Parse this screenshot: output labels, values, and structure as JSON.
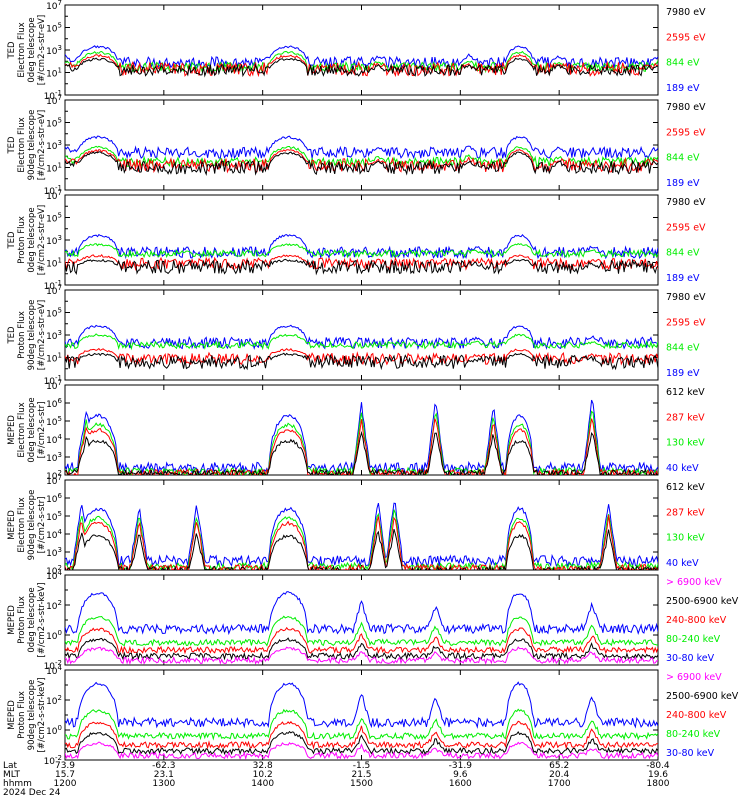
{
  "chart_data": [
    {
      "type": "line",
      "ylabel": "TED\nElectron Flux\n0deg telescope\n[#/cm2-s-str-eV]",
      "log_y": true,
      "y_ticks": [
        "10",
        "10",
        "10",
        "10",
        "10"
      ],
      "y_exps": [
        "-1",
        "1",
        "3",
        "5",
        "7"
      ],
      "legend_placement": "right",
      "series": [
        {
          "name": "7980 eV",
          "color": "#000000",
          "level": 1.2,
          "peak": 2.2,
          "noise": 0.5
        },
        {
          "name": "2595 eV",
          "color": "#ff0000",
          "level": 1.3,
          "peak": 2.5,
          "noise": 0.6
        },
        {
          "name": "844 eV",
          "color": "#00ee00",
          "level": 1.5,
          "peak": 2.8,
          "noise": 0.4
        },
        {
          "name": "189 eV",
          "color": "#0000ff",
          "level": 1.9,
          "peak": 3.3,
          "noise": 0.5
        }
      ],
      "events": [
        [
          1160,
          1.0
        ],
        [
          1210,
          1.2
        ],
        [
          1370,
          1.0
        ],
        [
          1410,
          1.4
        ],
        [
          1510,
          0.9
        ],
        [
          1605,
          1.1
        ],
        [
          1700,
          0.9
        ],
        [
          1760,
          0.8
        ]
      ]
    },
    {
      "type": "line",
      "ylabel": "TED\nElectron Flux\n90deg telescope\n[#/cm2-s-str-eV]",
      "log_y": true,
      "y_ticks": [
        "10",
        "10",
        "10",
        "10",
        "10"
      ],
      "y_exps": [
        "-1",
        "1",
        "3",
        "5",
        "7"
      ],
      "legend_placement": "right",
      "series": [
        {
          "name": "7980 eV",
          "color": "#000000",
          "level": 1.0,
          "peak": 2.3,
          "noise": 0.6
        },
        {
          "name": "2595 eV",
          "color": "#ff0000",
          "level": 1.2,
          "peak": 2.5,
          "noise": 0.6
        },
        {
          "name": "844 eV",
          "color": "#00ee00",
          "level": 1.5,
          "peak": 2.8,
          "noise": 0.4
        },
        {
          "name": "189 eV",
          "color": "#0000ff",
          "level": 2.3,
          "peak": 3.7,
          "noise": 0.5
        }
      ],
      "events": [
        [
          1160,
          1.0
        ],
        [
          1210,
          1.2
        ],
        [
          1370,
          1.0
        ],
        [
          1410,
          1.4
        ],
        [
          1510,
          0.9
        ],
        [
          1605,
          1.1
        ],
        [
          1700,
          0.9
        ],
        [
          1760,
          0.8
        ]
      ]
    },
    {
      "type": "line",
      "ylabel": "TED\nProton Flux\n0deg telescope\n[#/cm2-s-str-eV]",
      "log_y": true,
      "y_ticks": [
        "10",
        "10",
        "10",
        "10",
        "10"
      ],
      "y_exps": [
        "-1",
        "1",
        "3",
        "5",
        "7"
      ],
      "legend_placement": "right",
      "series": [
        {
          "name": "7980 eV",
          "color": "#000000",
          "level": 0.6,
          "peak": 1.2,
          "noise": 0.6
        },
        {
          "name": "2595 eV",
          "color": "#ff0000",
          "level": 0.9,
          "peak": 1.6,
          "noise": 0.5
        },
        {
          "name": "844 eV",
          "color": "#00ee00",
          "level": 1.8,
          "peak": 2.6,
          "noise": 0.3
        },
        {
          "name": "189 eV",
          "color": "#0000ff",
          "level": 1.9,
          "peak": 3.4,
          "noise": 0.5
        }
      ],
      "events": [
        [
          1380,
          0.7
        ],
        [
          1420,
          0.9
        ],
        [
          1610,
          0.8
        ],
        [
          1720,
          0.9
        ]
      ]
    },
    {
      "type": "line",
      "ylabel": "TED\nProton Flux\n90deg telescope\n[#/cm2-s-str-eV]",
      "log_y": true,
      "y_ticks": [
        "10",
        "10",
        "10",
        "10",
        "10"
      ],
      "y_exps": [
        "-1",
        "1",
        "3",
        "5",
        "7"
      ],
      "legend_placement": "right",
      "series": [
        {
          "name": "7980 eV",
          "color": "#000000",
          "level": 0.6,
          "peak": 1.3,
          "noise": 0.6
        },
        {
          "name": "2595 eV",
          "color": "#ff0000",
          "level": 0.9,
          "peak": 1.7,
          "noise": 0.5
        },
        {
          "name": "844 eV",
          "color": "#00ee00",
          "level": 2.1,
          "peak": 3.0,
          "noise": 0.3
        },
        {
          "name": "189 eV",
          "color": "#0000ff",
          "level": 2.3,
          "peak": 3.8,
          "noise": 0.5
        }
      ],
      "events": [
        [
          1380,
          0.7
        ],
        [
          1420,
          0.9
        ],
        [
          1610,
          0.8
        ],
        [
          1720,
          0.9
        ]
      ]
    },
    {
      "type": "line",
      "ylabel": "MEPED\nElectron Flux\n0deg telescope\n[#/cm2-s-str]",
      "log_y": true,
      "y_ticks": [
        "10",
        "10",
        "10",
        "10",
        "10",
        "10"
      ],
      "y_exps": [
        "2",
        "3",
        "4",
        "5",
        "6",
        "7"
      ],
      "legend_placement": "right",
      "series": [
        {
          "name": "612 keV",
          "color": "#000000",
          "level": 2.1,
          "peak": 3.9,
          "noise": 0.2
        },
        {
          "name": "287 keV",
          "color": "#ff0000",
          "level": 2.1,
          "peak": 4.5,
          "noise": 0.2
        },
        {
          "name": "130 keV",
          "color": "#00ee00",
          "level": 2.2,
          "peak": 4.8,
          "noise": 0.2
        },
        {
          "name": "40 keV",
          "color": "#0000ff",
          "level": 2.4,
          "peak": 5.3,
          "noise": 0.3
        }
      ],
      "events": [
        [
          1213,
          2.8
        ],
        [
          1500,
          3.1
        ],
        [
          1545,
          3.3
        ],
        [
          1620,
          3.0
        ],
        [
          1720,
          3.4
        ]
      ]
    },
    {
      "type": "line",
      "ylabel": "MEPED\nElectron Flux\n90deg telescope\n[#/cm2-s-str]",
      "log_y": true,
      "y_ticks": [
        "10",
        "10",
        "10",
        "10",
        "10",
        "10"
      ],
      "y_exps": [
        "2",
        "3",
        "4",
        "5",
        "6",
        "7"
      ],
      "legend_placement": "right",
      "series": [
        {
          "name": "612 keV",
          "color": "#000000",
          "level": 2.0,
          "peak": 3.9,
          "noise": 0.2
        },
        {
          "name": "287 keV",
          "color": "#ff0000",
          "level": 2.1,
          "peak": 4.6,
          "noise": 0.2
        },
        {
          "name": "130 keV",
          "color": "#00ee00",
          "level": 2.2,
          "peak": 4.9,
          "noise": 0.2
        },
        {
          "name": "40 keV",
          "color": "#0000ff",
          "level": 2.5,
          "peak": 5.4,
          "noise": 0.3
        }
      ],
      "events": [
        [
          1170,
          2.8
        ],
        [
          1245,
          2.6
        ],
        [
          1320,
          2.7
        ],
        [
          1470,
          2.9
        ],
        [
          1520,
          3.0
        ],
        [
          1690,
          2.8
        ],
        [
          1770,
          2.7
        ]
      ]
    },
    {
      "type": "line",
      "ylabel": "MEPED\nProton Flux\n0deg telescope\n[#/cm2-s-str-keV]",
      "log_y": true,
      "y_ticks": [
        "10",
        "10",
        "10",
        "10"
      ],
      "y_exps": [
        "-2",
        "0",
        "2",
        "4"
      ],
      "legend_placement": "right",
      "series": [
        {
          "name": "> 6900 keV",
          "color": "#ff00ff",
          "level": -1.7,
          "peak": -0.9,
          "noise": 0.2
        },
        {
          "name": "2500-6900 keV",
          "color": "#000000",
          "level": -1.4,
          "peak": -0.3,
          "noise": 0.2
        },
        {
          "name": "240-800 keV",
          "color": "#ff0000",
          "level": -1.0,
          "peak": 0.4,
          "noise": 0.2
        },
        {
          "name": "80-240 keV",
          "color": "#00ee00",
          "level": -0.5,
          "peak": 1.2,
          "noise": 0.2
        },
        {
          "name": "30-80 keV",
          "color": "#0000ff",
          "level": 0.4,
          "peak": 2.8,
          "noise": 0.3
        }
      ],
      "events": [
        [
          1213,
          1.4
        ],
        [
          1500,
          1.9
        ],
        [
          1545,
          1.6
        ],
        [
          1720,
          1.7
        ]
      ]
    },
    {
      "type": "line",
      "ylabel": "MEPED\nProton Flux\n90deg telescope\n[#/cm2-s-str-keV]",
      "log_y": true,
      "y_ticks": [
        "10",
        "10",
        "10",
        "10"
      ],
      "y_exps": [
        "-2",
        "0",
        "2",
        "4"
      ],
      "legend_placement": "right",
      "series": [
        {
          "name": "> 6900 keV",
          "color": "#ff00ff",
          "level": -1.7,
          "peak": -0.9,
          "noise": 0.2
        },
        {
          "name": "2500-6900 keV",
          "color": "#000000",
          "level": -1.4,
          "peak": -0.2,
          "noise": 0.2
        },
        {
          "name": "240-800 keV",
          "color": "#ff0000",
          "level": -1.0,
          "peak": 0.5,
          "noise": 0.2
        },
        {
          "name": "80-240 keV",
          "color": "#00ee00",
          "level": -0.4,
          "peak": 1.3,
          "noise": 0.2
        },
        {
          "name": "30-80 keV",
          "color": "#0000ff",
          "level": 0.5,
          "peak": 3.1,
          "noise": 0.3
        }
      ],
      "events": [
        [
          1213,
          1.4
        ],
        [
          1500,
          1.9
        ],
        [
          1545,
          1.6
        ],
        [
          1720,
          1.7
        ]
      ]
    }
  ],
  "passes": [
    [
      1212,
      1228
    ],
    [
      1408,
      1423
    ],
    [
      1632,
      1640
    ]
  ],
  "x_axis": {
    "range_hhmm": [
      1200,
      1800
    ],
    "tick_positions_hhmm": [
      1200,
      1300,
      1400,
      1500,
      1600,
      1700,
      1800
    ],
    "row_labels": [
      "Lat",
      "MLT",
      "hhmm",
      "2024 Dec 24"
    ],
    "lat": [
      "73.9",
      "-62.3",
      "32.8",
      "-1.5",
      "-31.9",
      "65.2",
      "-80.4"
    ],
    "mlt": [
      "15.7",
      "23.1",
      "10.2",
      "21.5",
      "9.6",
      "20.4",
      "19.6"
    ],
    "hhmm": [
      "1200",
      "1300",
      "1400",
      "1500",
      "1600",
      "1700",
      "1800"
    ]
  }
}
